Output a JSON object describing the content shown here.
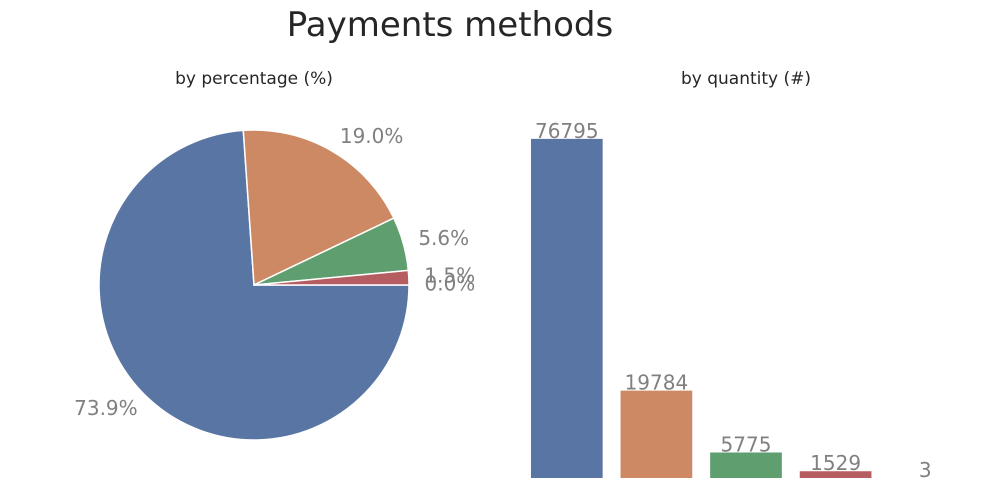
{
  "suptitle": "Payments methods",
  "chart_data": [
    {
      "type": "pie",
      "title": "by percentage (%)",
      "values": [
        73.9,
        19.0,
        5.6,
        1.5,
        0.0
      ],
      "labels": [
        "73.9%",
        "19.0%",
        "5.6%",
        "1.5%",
        "0.0%"
      ],
      "colors": [
        "#5975a4",
        "#cc8963",
        "#5f9e6e",
        "#b55d60",
        "#857aab"
      ]
    },
    {
      "type": "bar",
      "title": "by quantity (#)",
      "values": [
        76795,
        19784,
        5775,
        1529,
        3
      ],
      "labels": [
        "76795",
        "19784",
        "5775",
        "1529",
        "3"
      ],
      "colors": [
        "#5975a4",
        "#cc8963",
        "#5f9e6e",
        "#b55d60",
        "#857aab"
      ],
      "ylim": [
        0,
        80000
      ],
      "grid": false
    }
  ]
}
